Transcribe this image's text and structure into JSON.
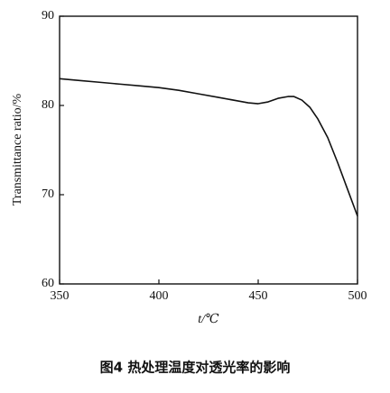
{
  "chart_data": {
    "type": "line",
    "x": [
      350,
      360,
      370,
      380,
      390,
      400,
      410,
      420,
      430,
      440,
      445,
      450,
      455,
      460,
      465,
      468,
      472,
      476,
      480,
      485,
      490,
      495,
      500
    ],
    "series": [
      {
        "color": "#111111",
        "values": [
          83.0,
          82.8,
          82.6,
          82.4,
          82.2,
          82.0,
          81.7,
          81.3,
          80.9,
          80.5,
          80.3,
          80.2,
          80.4,
          80.8,
          81.0,
          81.0,
          80.6,
          79.8,
          78.5,
          76.4,
          73.6,
          70.6,
          67.6
        ]
      }
    ],
    "xlabel": "t/℃",
    "ylabel": "Transmittance ratio/%",
    "xlim": [
      350,
      500
    ],
    "xticks": [
      350,
      400,
      450,
      500
    ],
    "ylim": [
      60,
      90
    ],
    "yticks": [
      60,
      70,
      80,
      90
    ],
    "caption": "图4  热处理温度对透光率的影响"
  }
}
